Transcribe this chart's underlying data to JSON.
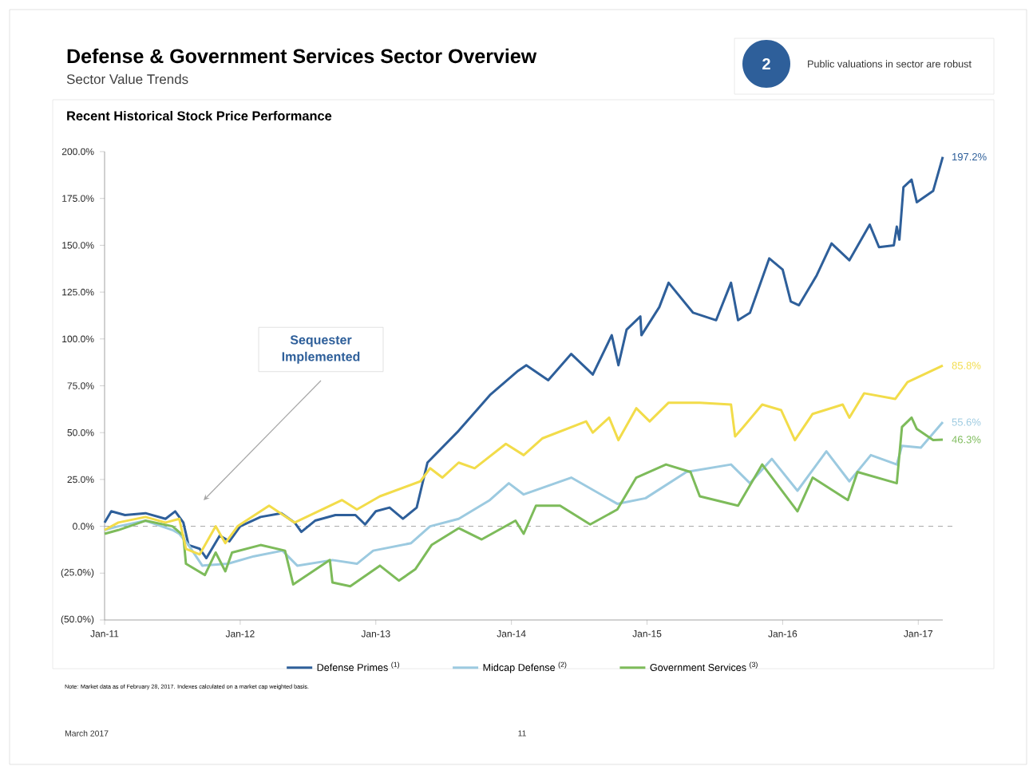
{
  "chart_data": {
    "type": "line",
    "title": "Defense & Government Services Sector Overview",
    "subtitle": "Sector Value Trends",
    "xlim": [
      "2011-01-01",
      "2017-03-08"
    ],
    "xticks": [
      {
        "value": "2011-01-01",
        "label": "Jan-11"
      },
      {
        "value": "2012-01-01",
        "label": "Jan-12"
      },
      {
        "value": "2013-01-01",
        "label": "Jan-13"
      },
      {
        "value": "2014-01-01",
        "label": "Jan-14"
      },
      {
        "value": "2015-01-01",
        "label": "Jan-15"
      },
      {
        "value": "2016-01-01",
        "label": "Jan-16"
      },
      {
        "value": "2017-01-01",
        "label": "Jan-17"
      }
    ],
    "ylim": [
      -50,
      200
    ],
    "yticks": [
      {
        "value": -50,
        "label": "(50.0%)"
      },
      {
        "value": -25,
        "label": "(25.0%)"
      },
      {
        "value": 0,
        "label": "0.0%"
      },
      {
        "value": 25,
        "label": "25.0%"
      },
      {
        "value": 50,
        "label": "50.0%"
      },
      {
        "value": 75,
        "label": "75.0%"
      },
      {
        "value": 100,
        "label": "100.0%"
      },
      {
        "value": 125,
        "label": "125.0%"
      },
      {
        "value": 150,
        "label": "150.0%"
      },
      {
        "value": 175,
        "label": "175.0%"
      },
      {
        "value": 200,
        "label": "200.0%"
      }
    ],
    "grid": false,
    "legend": "bottom",
    "marker": "none",
    "line_style": "solid",
    "ref_lines": [
      {
        "axis": "y",
        "value": 0,
        "color": "#aaaaaa",
        "line_style": "dashed"
      }
    ],
    "series": [
      {
        "name": "Defense Primes $^{(1)}$",
        "color": "#2e5f9a",
        "x": [
          "2011-01-01",
          "2011-01-19",
          "2011-02-25",
          "2011-04-21",
          "2011-06-14",
          "2011-07-10",
          "2011-08-01",
          "2011-08-15",
          "2011-09-14",
          "2011-10-02",
          "2011-11-07",
          "2011-12-03",
          "2012-01-01",
          "2012-02-25",
          "2012-04-21",
          "2012-05-27",
          "2012-06-14",
          "2012-07-21",
          "2012-09-14",
          "2012-11-07",
          "2012-12-03",
          "2013-01-01",
          "2013-02-07",
          "2013-03-15",
          "2013-04-21",
          "2013-05-20",
          "2013-08-12",
          "2013-11-04",
          "2014-01-19",
          "2014-02-10",
          "2014-04-10",
          "2014-06-11",
          "2014-08-08",
          "2014-09-28",
          "2014-10-16",
          "2014-11-07",
          "2014-12-14",
          "2014-12-17",
          "2015-02-03",
          "2015-02-28",
          "2015-05-05",
          "2015-07-06",
          "2015-08-15",
          "2015-09-03",
          "2015-10-05",
          "2015-11-26",
          "2016-01-01",
          "2016-01-23",
          "2016-02-14",
          "2016-04-02",
          "2016-05-12",
          "2016-06-29",
          "2016-08-23",
          "2016-09-17",
          "2016-10-27",
          "2016-11-04",
          "2016-11-11",
          "2016-11-22",
          "2016-12-14",
          "2016-12-28",
          "2017-02-10",
          "2017-03-08"
        ],
        "values": [
          2,
          8,
          6,
          7,
          4,
          8,
          2,
          -10,
          -12,
          -17,
          -5,
          -8,
          0,
          5,
          7,
          2,
          -3,
          3,
          6,
          6,
          1,
          8,
          10,
          4,
          10,
          34,
          51,
          70,
          83,
          86,
          78,
          92,
          81,
          102,
          86,
          105,
          112,
          102,
          117,
          130,
          114,
          110,
          130,
          110,
          114,
          143,
          137,
          120,
          118,
          134,
          151,
          142,
          161,
          149,
          150,
          160,
          153,
          181,
          185,
          173,
          179,
          197.2
        ]
      },
      {
        "name": "Midcap Defense $^{(2)}$",
        "color": "#9ccae0",
        "x": [
          "2011-01-01",
          "2011-02-07",
          "2011-04-21",
          "2011-07-03",
          "2011-07-21",
          "2011-08-15",
          "2011-09-21",
          "2011-11-29",
          "2012-02-07",
          "2012-04-24",
          "2012-06-03",
          "2012-09-06",
          "2012-11-11",
          "2012-12-25",
          "2013-04-06",
          "2013-05-27",
          "2013-08-12",
          "2013-11-04",
          "2013-12-25",
          "2014-02-03",
          "2014-06-11",
          "2014-10-13",
          "2014-12-28",
          "2015-04-17",
          "2015-08-15",
          "2015-10-05",
          "2015-12-03",
          "2016-02-10",
          "2016-04-28",
          "2016-06-29",
          "2016-08-26",
          "2016-11-04",
          "2016-11-18",
          "2017-01-08",
          "2017-03-08"
        ],
        "values": [
          -2,
          0,
          3,
          -2,
          -4,
          -10,
          -21,
          -20,
          -16,
          -13,
          -21,
          -18,
          -20,
          -13,
          -9,
          0,
          4,
          14,
          23,
          17,
          26,
          12,
          15,
          29,
          33,
          23,
          36,
          19,
          40,
          24,
          38,
          33,
          43,
          42,
          55.6
        ]
      },
      {
        "name": "Government Services $^{(3)}$",
        "color": "#7dbb5a",
        "x": [
          "2011-01-01",
          "2011-02-07",
          "2011-04-21",
          "2011-07-03",
          "2011-08-01",
          "2011-08-08",
          "2011-09-28",
          "2011-10-27",
          "2011-11-22",
          "2011-12-10",
          "2012-02-25",
          "2012-05-01",
          "2012-05-23",
          "2012-08-30",
          "2012-09-06",
          "2012-10-24",
          "2013-01-12",
          "2013-03-04",
          "2013-04-17",
          "2013-05-31",
          "2013-08-12",
          "2013-10-13",
          "2014-01-12",
          "2014-02-03",
          "2014-03-08",
          "2014-05-12",
          "2014-08-01",
          "2014-10-13",
          "2014-12-03",
          "2015-02-21",
          "2015-04-28",
          "2015-05-23",
          "2015-09-03",
          "2015-11-07",
          "2016-02-10",
          "2016-03-22",
          "2016-06-25",
          "2016-07-21",
          "2016-11-04",
          "2016-11-18",
          "2016-12-14",
          "2016-12-28",
          "2017-02-10",
          "2017-03-08"
        ],
        "values": [
          -4,
          -2,
          3,
          0,
          -5,
          -20,
          -26,
          -14,
          -24,
          -14,
          -10,
          -13,
          -31,
          -18,
          -30,
          -32,
          -21,
          -29,
          -23,
          -10,
          -1,
          -7,
          3,
          -4,
          11,
          11,
          1,
          9,
          26,
          33,
          29,
          16,
          11,
          33,
          8,
          26,
          14,
          29,
          23,
          53,
          58,
          52,
          46,
          46.3
        ]
      },
      {
        "color": "#f2dc4a",
        "x": [
          "2011-01-01",
          "2011-02-07",
          "2011-04-21",
          "2011-06-14",
          "2011-07-21",
          "2011-08-08",
          "2011-09-14",
          "2011-10-27",
          "2011-11-22",
          "2011-12-25",
          "2012-03-19",
          "2012-05-27",
          "2012-10-02",
          "2012-11-11",
          "2013-01-12",
          "2013-05-01",
          "2013-05-27",
          "2013-06-29",
          "2013-08-12",
          "2013-09-24",
          "2013-12-17",
          "2014-02-03",
          "2014-03-26",
          "2014-07-21",
          "2014-08-08",
          "2014-09-21",
          "2014-10-16",
          "2014-12-03",
          "2015-01-08",
          "2015-02-28",
          "2015-05-23",
          "2015-08-15",
          "2015-08-26",
          "2015-09-17",
          "2015-11-07",
          "2015-12-28",
          "2016-02-03",
          "2016-03-22",
          "2016-06-11",
          "2016-06-29",
          "2016-08-08",
          "2016-10-31",
          "2016-12-03",
          "2017-03-08"
        ],
        "values": [
          -2,
          2,
          5,
          2,
          4,
          -12,
          -15,
          0,
          -9,
          0,
          11,
          2,
          14,
          9,
          16,
          24,
          31,
          26,
          34,
          31,
          44,
          38,
          47,
          56,
          50,
          58,
          46,
          63,
          56,
          66,
          66,
          65,
          48,
          53,
          65,
          62,
          46,
          60,
          65,
          58,
          71,
          68,
          77,
          85.8
        ]
      }
    ],
    "annotations": [
      "Recent Historical Stock Price Performance",
      "Sequester Implemented",
      {
        "text": "197.2%",
        "x": "2017-03-08",
        "y": 197.2
      },
      {
        "text": "85.8%",
        "x": "2017-03-08",
        "y": 85.8
      },
      {
        "text": "55.6%",
        "x": "2017-03-08",
        "y": 55.6
      },
      {
        "text": "46.3%",
        "x": "2017-03-08",
        "y": 46.3
      },
      "2",
      "Public valuations in sector are robust",
      "Note: Market data as of February 28, 2017. Indexes calculated on a market cap weighted basis.",
      "March 2017",
      "11"
    ]
  }
}
